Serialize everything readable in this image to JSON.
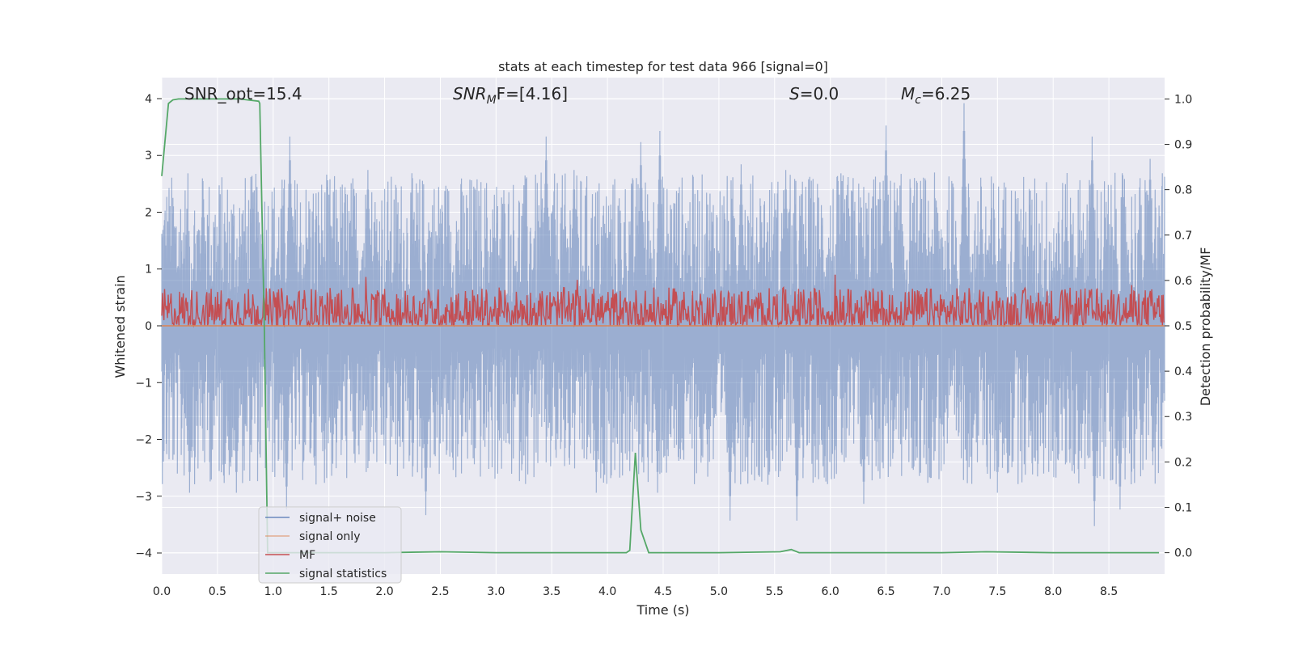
{
  "chart_data": {
    "type": "line",
    "title": "stats at each timestep for test data 966 [signal=0]",
    "xlabel": "Time (s)",
    "ylabel_left": "Whitened strain",
    "ylabel_right": "Detection probability/MF",
    "xlim": [
      0.0,
      9.0
    ],
    "ylim_left": [
      -4.37,
      4.37
    ],
    "ylim_right": [
      -0.047,
      1.047
    ],
    "x_ticks": [
      "0.0",
      "0.5",
      "1.0",
      "1.5",
      "2.0",
      "2.5",
      "3.0",
      "3.5",
      "4.0",
      "4.5",
      "5.0",
      "5.5",
      "6.0",
      "6.5",
      "7.0",
      "7.5",
      "8.0",
      "8.5"
    ],
    "y_ticks_left": [
      "−4",
      "−3",
      "−2",
      "−1",
      "0",
      "1",
      "2",
      "3",
      "4"
    ],
    "y_ticks_right": [
      "0.0",
      "0.1",
      "0.2",
      "0.3",
      "0.4",
      "0.5",
      "0.6",
      "0.7",
      "0.8",
      "0.9",
      "1.0"
    ],
    "grid": true,
    "legend_position": "lower-left",
    "annotations": {
      "snr_opt": "SNR_opt=15.4",
      "snr_mf_main": "SNR",
      "snr_mf_sub": "M",
      "snr_mf_rest": "F=[4.16]",
      "s_main": "S",
      "s_rest": "=0.0",
      "mc_main": "M",
      "mc_sub": "c",
      "mc_rest": "=6.25"
    },
    "series": [
      {
        "name": "signal+ noise",
        "axis": "left",
        "color": "#4c72b0",
        "alpha": 0.5,
        "description_envelope": {
          "upper_peaks": [
            [
              0.1,
              2.3
            ],
            [
              0.37,
              2.6
            ],
            [
              0.82,
              2.4
            ],
            [
              1.15,
              3.4
            ],
            [
              1.85,
              2.8
            ],
            [
              2.5,
              2.1
            ],
            [
              3.45,
              3.4
            ],
            [
              3.7,
              2.8
            ],
            [
              4.3,
              3.3
            ],
            [
              4.47,
              3.5
            ],
            [
              5.2,
              2.9
            ],
            [
              5.6,
              2.8
            ],
            [
              6.5,
              3.6
            ],
            [
              7.2,
              4.0
            ],
            [
              8.35,
              3.4
            ],
            [
              8.87,
              3.0
            ]
          ],
          "lower_peaks": [
            [
              0.25,
              -3.0
            ],
            [
              0.67,
              -3.0
            ],
            [
              1.12,
              -3.3
            ],
            [
              2.37,
              -3.4
            ],
            [
              3.9,
              -3.0
            ],
            [
              4.45,
              -3.0
            ],
            [
              5.1,
              -3.5
            ],
            [
              5.7,
              -3.5
            ],
            [
              6.3,
              -3.2
            ],
            [
              7.5,
              -3.0
            ],
            [
              8.37,
              -3.6
            ],
            [
              8.6,
              -3.3
            ]
          ]
        }
      },
      {
        "name": "signal only",
        "axis": "left",
        "color": "#dd8452",
        "x": [
          0.0,
          9.0
        ],
        "y": [
          0.0,
          0.0
        ]
      },
      {
        "name": "MF",
        "axis": "right",
        "color": "#c44e52",
        "baseline": 0.5,
        "typical_top": 0.565,
        "max_top": 0.615
      },
      {
        "name": "signal statistics",
        "axis": "right",
        "color": "#55a868",
        "x": [
          0.0,
          0.06,
          0.1,
          0.15,
          0.4,
          0.7,
          0.87,
          0.88,
          0.92,
          0.95,
          1.0,
          1.5,
          2.0,
          2.5,
          3.0,
          3.5,
          4.0,
          4.17,
          4.2,
          4.25,
          4.3,
          4.37,
          4.5,
          5.0,
          5.55,
          5.65,
          5.72,
          5.8,
          6.5,
          7.0,
          7.4,
          8.0,
          8.5,
          8.95
        ],
        "y": [
          0.83,
          0.99,
          0.998,
          1.0,
          1.0,
          1.0,
          0.995,
          0.99,
          0.5,
          0.0,
          0.0,
          0.0,
          0.0,
          0.002,
          0.0,
          0.0,
          0.0,
          0.0,
          0.005,
          0.22,
          0.05,
          0.0,
          0.0,
          0.0,
          0.002,
          0.007,
          0.0,
          0.0,
          0.0,
          0.0,
          0.002,
          0.0,
          0.0,
          0.0
        ]
      }
    ]
  }
}
